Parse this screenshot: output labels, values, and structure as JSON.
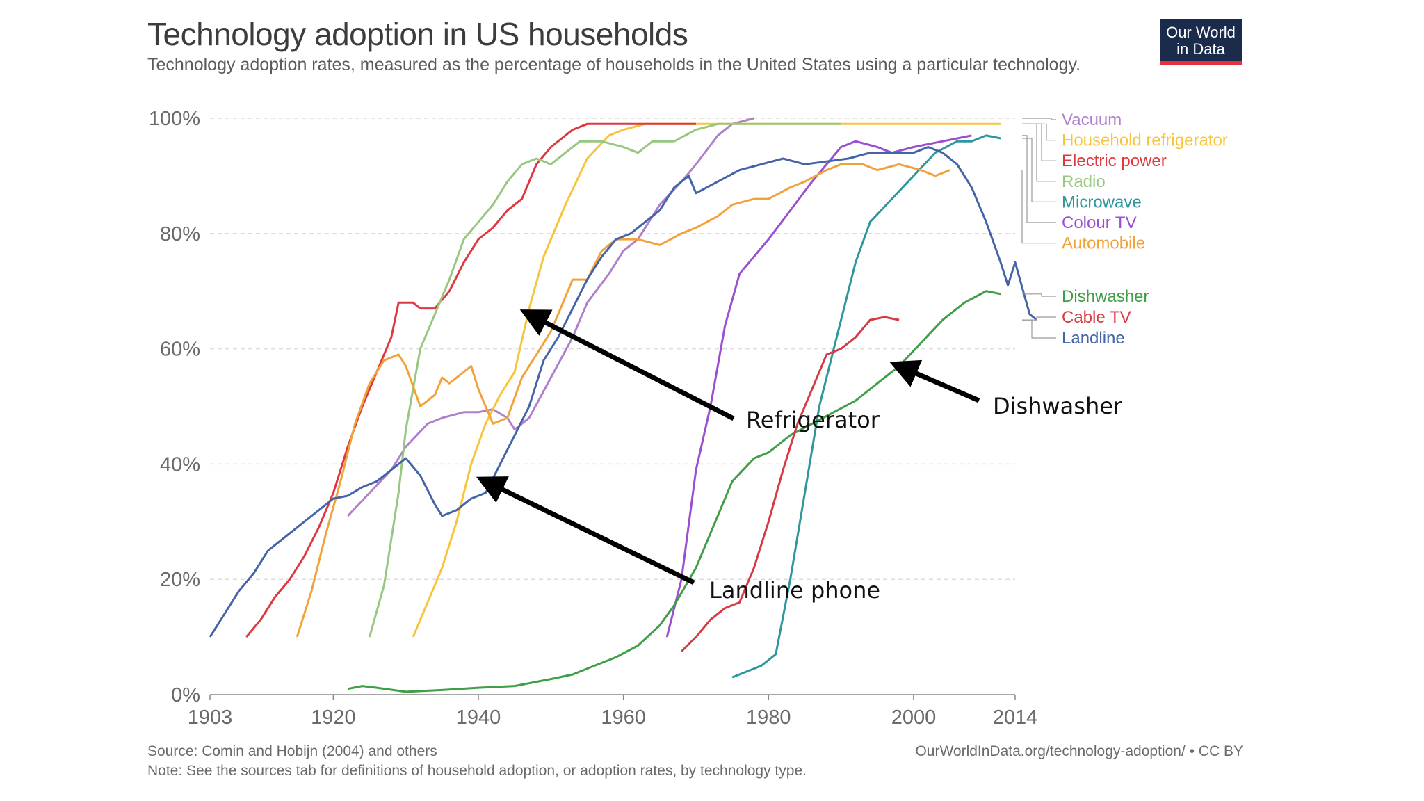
{
  "header": {
    "title": "Technology adoption in US households",
    "subtitle": "Technology adoption rates, measured as the percentage of households in the United States using a particular technology."
  },
  "logo": {
    "line1": "Our World",
    "line2": "in Data"
  },
  "footer": {
    "source": "Source: Comin and Hobijn (2004) and others",
    "note": "Note: See the sources tab for definitions of household adoption, or adoption rates, by technology type.",
    "link": "OurWorldInData.org/technology-adoption/ • CC BY"
  },
  "colors": {
    "Vacuum": "#b07fcc",
    "Household refrigerator": "#f7c53b",
    "Electric power": "#e0373f",
    "Radio": "#97c780",
    "Microwave": "#2f969b",
    "Colour TV": "#9b4fd0",
    "Automobile": "#f2a23a",
    "Dishwasher": "#3f9e46",
    "Cable TV": "#d63a43",
    "Landline": "#4464a8",
    "grid": "#dddddd",
    "axis": "#888888"
  },
  "chart_data": {
    "type": "line",
    "title": "Technology adoption in US households",
    "ylabel": "",
    "xlabel": "",
    "x_ticks": [
      "1903",
      "1920",
      "1940",
      "1960",
      "1980",
      "2000",
      "2014"
    ],
    "y_ticks": [
      "0%",
      "20%",
      "40%",
      "60%",
      "80%",
      "100%"
    ],
    "xlim": [
      1903,
      2014
    ],
    "ylim": [
      0,
      100
    ],
    "grid": "horizontal dashed",
    "legend_placement": "right",
    "series": [
      {
        "name": "Vacuum",
        "points": [
          [
            1922,
            31
          ],
          [
            1925,
            35
          ],
          [
            1928,
            39
          ],
          [
            1930,
            43
          ],
          [
            1933,
            47
          ],
          [
            1935,
            48
          ],
          [
            1938,
            49
          ],
          [
            1940,
            49
          ],
          [
            1942,
            49.5
          ],
          [
            1944,
            48
          ],
          [
            1945,
            46
          ],
          [
            1947,
            48
          ],
          [
            1950,
            55
          ],
          [
            1953,
            62
          ],
          [
            1955,
            68
          ],
          [
            1958,
            73
          ],
          [
            1960,
            77
          ],
          [
            1962,
            79
          ],
          [
            1965,
            85
          ],
          [
            1968,
            89
          ],
          [
            1970,
            92
          ],
          [
            1973,
            97
          ],
          [
            1975,
            99
          ],
          [
            1978,
            100
          ]
        ]
      },
      {
        "name": "Household refrigerator",
        "points": [
          [
            1931,
            10
          ],
          [
            1933,
            16
          ],
          [
            1935,
            22
          ],
          [
            1937,
            30
          ],
          [
            1939,
            40
          ],
          [
            1941,
            47
          ],
          [
            1943,
            52
          ],
          [
            1945,
            56
          ],
          [
            1947,
            67
          ],
          [
            1949,
            76
          ],
          [
            1952,
            85
          ],
          [
            1955,
            93
          ],
          [
            1958,
            97
          ],
          [
            1960,
            98
          ],
          [
            1963,
            99
          ],
          [
            1968,
            99
          ],
          [
            1980,
            99
          ],
          [
            2000,
            99
          ],
          [
            2012,
            99
          ]
        ]
      },
      {
        "name": "Electric power",
        "points": [
          [
            1908,
            10
          ],
          [
            1910,
            13
          ],
          [
            1912,
            17
          ],
          [
            1914,
            20
          ],
          [
            1916,
            24
          ],
          [
            1918,
            29
          ],
          [
            1920,
            35
          ],
          [
            1922,
            43
          ],
          [
            1924,
            50
          ],
          [
            1926,
            56
          ],
          [
            1928,
            62
          ],
          [
            1929,
            68
          ],
          [
            1931,
            68
          ],
          [
            1932,
            67
          ],
          [
            1934,
            67
          ],
          [
            1936,
            70
          ],
          [
            1938,
            75
          ],
          [
            1940,
            79
          ],
          [
            1942,
            81
          ],
          [
            1944,
            84
          ],
          [
            1946,
            86
          ],
          [
            1948,
            92
          ],
          [
            1950,
            95
          ],
          [
            1953,
            98
          ],
          [
            1955,
            99
          ],
          [
            1960,
            99
          ],
          [
            1965,
            99
          ],
          [
            1970,
            99
          ]
        ]
      },
      {
        "name": "Radio",
        "points": [
          [
            1925,
            10
          ],
          [
            1927,
            19
          ],
          [
            1929,
            35
          ],
          [
            1930,
            46
          ],
          [
            1932,
            60
          ],
          [
            1934,
            66
          ],
          [
            1936,
            72
          ],
          [
            1938,
            79
          ],
          [
            1940,
            82
          ],
          [
            1942,
            85
          ],
          [
            1944,
            89
          ],
          [
            1946,
            92
          ],
          [
            1948,
            93
          ],
          [
            1950,
            92
          ],
          [
            1952,
            94
          ],
          [
            1954,
            96
          ],
          [
            1957,
            96
          ],
          [
            1960,
            95
          ],
          [
            1962,
            94
          ],
          [
            1964,
            96
          ],
          [
            1967,
            96
          ],
          [
            1970,
            98
          ],
          [
            1973,
            99
          ],
          [
            1980,
            99
          ],
          [
            1990,
            99
          ]
        ]
      },
      {
        "name": "Microwave",
        "points": [
          [
            1975,
            3
          ],
          [
            1979,
            5
          ],
          [
            1981,
            7
          ],
          [
            1983,
            20
          ],
          [
            1985,
            35
          ],
          [
            1987,
            50
          ],
          [
            1990,
            65
          ],
          [
            1992,
            75
          ],
          [
            1994,
            82
          ],
          [
            1997,
            86
          ],
          [
            2000,
            90
          ],
          [
            2003,
            94
          ],
          [
            2006,
            96
          ],
          [
            2008,
            96
          ],
          [
            2010,
            97
          ],
          [
            2012,
            96.5
          ]
        ]
      },
      {
        "name": "Colour TV",
        "points": [
          [
            1966,
            10
          ],
          [
            1968,
            20
          ],
          [
            1970,
            39
          ],
          [
            1972,
            50
          ],
          [
            1974,
            64
          ],
          [
            1976,
            73
          ],
          [
            1978,
            76
          ],
          [
            1980,
            79
          ],
          [
            1983,
            84
          ],
          [
            1986,
            89
          ],
          [
            1988,
            92
          ],
          [
            1990,
            95
          ],
          [
            1992,
            96
          ],
          [
            1995,
            95
          ],
          [
            1997,
            94
          ],
          [
            2000,
            95
          ],
          [
            2004,
            96
          ],
          [
            2008,
            97
          ]
        ]
      },
      {
        "name": "Automobile",
        "points": [
          [
            1915,
            10
          ],
          [
            1917,
            18
          ],
          [
            1919,
            28
          ],
          [
            1921,
            37
          ],
          [
            1923,
            47
          ],
          [
            1925,
            54
          ],
          [
            1927,
            58
          ],
          [
            1929,
            59
          ],
          [
            1930,
            57
          ],
          [
            1932,
            50
          ],
          [
            1934,
            52
          ],
          [
            1935,
            55
          ],
          [
            1936,
            54
          ],
          [
            1938,
            56
          ],
          [
            1939,
            57
          ],
          [
            1940,
            53
          ],
          [
            1942,
            47
          ],
          [
            1944,
            48
          ],
          [
            1946,
            55
          ],
          [
            1948,
            59
          ],
          [
            1950,
            63
          ],
          [
            1953,
            72
          ],
          [
            1955,
            72
          ],
          [
            1957,
            77
          ],
          [
            1959,
            79
          ],
          [
            1962,
            79
          ],
          [
            1965,
            78
          ],
          [
            1968,
            80
          ],
          [
            1970,
            81
          ],
          [
            1973,
            83
          ],
          [
            1975,
            85
          ],
          [
            1978,
            86
          ],
          [
            1980,
            86
          ],
          [
            1983,
            88
          ],
          [
            1985,
            89
          ],
          [
            1988,
            91
          ],
          [
            1990,
            92
          ],
          [
            1993,
            92
          ],
          [
            1995,
            91
          ],
          [
            1998,
            92
          ],
          [
            2001,
            91
          ],
          [
            2003,
            90
          ],
          [
            2005,
            91
          ]
        ]
      },
      {
        "name": "Dishwasher",
        "points": [
          [
            1922,
            1
          ],
          [
            1924,
            1.5
          ],
          [
            1926,
            1.2
          ],
          [
            1930,
            0.5
          ],
          [
            1935,
            0.8
          ],
          [
            1940,
            1.2
          ],
          [
            1945,
            1.5
          ],
          [
            1950,
            2.7
          ],
          [
            1953,
            3.5
          ],
          [
            1956,
            5
          ],
          [
            1959,
            6.5
          ],
          [
            1962,
            8.5
          ],
          [
            1965,
            12
          ],
          [
            1967,
            15.5
          ],
          [
            1970,
            22
          ],
          [
            1972,
            28
          ],
          [
            1975,
            37
          ],
          [
            1978,
            41
          ],
          [
            1980,
            42
          ],
          [
            1983,
            45
          ],
          [
            1986,
            47
          ],
          [
            1989,
            49
          ],
          [
            1992,
            51
          ],
          [
            1995,
            54
          ],
          [
            1998,
            57
          ],
          [
            2001,
            61
          ],
          [
            2004,
            65
          ],
          [
            2007,
            68
          ],
          [
            2010,
            70
          ],
          [
            2012,
            69.5
          ]
        ]
      },
      {
        "name": "Cable TV",
        "points": [
          [
            1968,
            7.5
          ],
          [
            1970,
            10
          ],
          [
            1972,
            13
          ],
          [
            1974,
            15
          ],
          [
            1976,
            16
          ],
          [
            1978,
            22
          ],
          [
            1980,
            30
          ],
          [
            1982,
            39
          ],
          [
            1984,
            47
          ],
          [
            1986,
            53
          ],
          [
            1988,
            59
          ],
          [
            1990,
            60
          ],
          [
            1992,
            62
          ],
          [
            1994,
            65
          ],
          [
            1996,
            65.5
          ],
          [
            1998,
            65
          ]
        ]
      },
      {
        "name": "Landline",
        "points": [
          [
            1903,
            10
          ],
          [
            1905,
            14
          ],
          [
            1907,
            18
          ],
          [
            1909,
            21
          ],
          [
            1911,
            25
          ],
          [
            1914,
            28
          ],
          [
            1917,
            31
          ],
          [
            1920,
            34
          ],
          [
            1922,
            34.5
          ],
          [
            1924,
            36
          ],
          [
            1926,
            37
          ],
          [
            1928,
            39
          ],
          [
            1930,
            41
          ],
          [
            1932,
            38
          ],
          [
            1934,
            33
          ],
          [
            1935,
            31
          ],
          [
            1937,
            32
          ],
          [
            1939,
            34
          ],
          [
            1941,
            35
          ],
          [
            1943,
            40
          ],
          [
            1945,
            45
          ],
          [
            1947,
            50
          ],
          [
            1949,
            58
          ],
          [
            1951,
            62
          ],
          [
            1953,
            67
          ],
          [
            1955,
            72
          ],
          [
            1957,
            76
          ],
          [
            1959,
            79
          ],
          [
            1961,
            80
          ],
          [
            1963,
            82
          ],
          [
            1965,
            84
          ],
          [
            1967,
            88
          ],
          [
            1969,
            90
          ],
          [
            1970,
            87
          ],
          [
            1973,
            89
          ],
          [
            1976,
            91
          ],
          [
            1979,
            92
          ],
          [
            1982,
            93
          ],
          [
            1985,
            92
          ],
          [
            1988,
            92.5
          ],
          [
            1991,
            93
          ],
          [
            1994,
            94
          ],
          [
            1997,
            94
          ],
          [
            2000,
            94
          ],
          [
            2002,
            95
          ],
          [
            2004,
            94
          ],
          [
            2006,
            92
          ],
          [
            2008,
            88
          ],
          [
            2010,
            82
          ],
          [
            2012,
            75
          ],
          [
            2013,
            71
          ],
          [
            2014,
            75
          ],
          [
            2016,
            66
          ],
          [
            2017,
            65
          ]
        ]
      }
    ],
    "legend": {
      "top_group": [
        "Vacuum",
        "Household refrigerator",
        "Electric power",
        "Radio",
        "Microwave",
        "Colour TV",
        "Automobile"
      ],
      "bottom_group": [
        "Dishwasher",
        "Cable TV",
        "Landline"
      ]
    },
    "annotations": [
      {
        "text": "Refrigerator",
        "arrow_to_x": 1947,
        "arrow_to_y": 66
      },
      {
        "text": "Landline phone",
        "arrow_to_x": 1941,
        "arrow_to_y": 37
      },
      {
        "text": "Dishwasher",
        "arrow_to_x": 1998,
        "arrow_to_y": 57
      }
    ]
  }
}
